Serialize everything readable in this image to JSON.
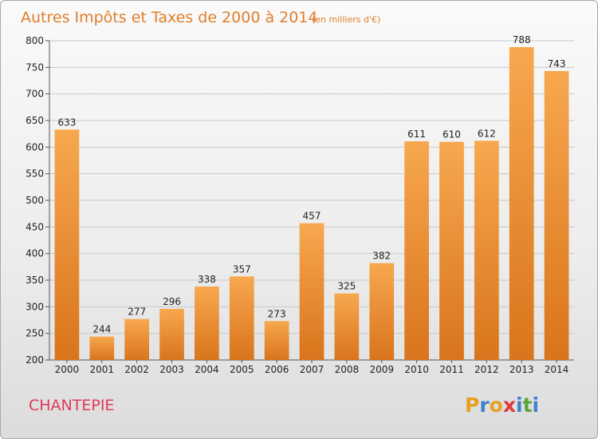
{
  "chart_data": {
    "type": "bar",
    "title": "Autres Impôts et Taxes de 2000 à 2014",
    "subtitle": "(en milliers d'€)",
    "categories": [
      "2000",
      "2001",
      "2002",
      "2003",
      "2004",
      "2005",
      "2006",
      "2007",
      "2008",
      "2009",
      "2010",
      "2011",
      "2012",
      "2013",
      "2014"
    ],
    "values": [
      633,
      244,
      277,
      296,
      338,
      357,
      273,
      457,
      325,
      382,
      611,
      610,
      612,
      788,
      743
    ],
    "ylim": [
      200,
      800
    ],
    "yticks": [
      "200",
      "250",
      "300",
      "350",
      "400",
      "450",
      "500",
      "550",
      "600",
      "650",
      "700",
      "750",
      "800"
    ],
    "grid": true,
    "bar_color_top": "#f7a84f",
    "bar_color_bottom": "#d9741c"
  },
  "commune": "CHANTEPIE",
  "logo": {
    "text": "Proxiti",
    "letters": [
      "P",
      "r",
      "o",
      "x",
      "i",
      "t",
      "i"
    ],
    "colors": [
      "#e8a020",
      "#3f7fd0",
      "#e8a020",
      "#e03a3a",
      "#3f7fd0",
      "#5aa83c",
      "#3f7fd0"
    ]
  }
}
